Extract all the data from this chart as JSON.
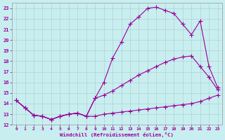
{
  "xlabel": "Windchill (Refroidissement éolien,°C)",
  "bg_color": "#c8eef0",
  "line_color": "#990099",
  "xlim": [
    -0.5,
    23.5
  ],
  "ylim": [
    12,
    23.5
  ],
  "xticks": [
    0,
    1,
    2,
    3,
    4,
    5,
    6,
    7,
    8,
    9,
    10,
    11,
    12,
    13,
    14,
    15,
    16,
    17,
    18,
    19,
    20,
    21,
    22,
    23
  ],
  "yticks": [
    12,
    13,
    14,
    15,
    16,
    17,
    18,
    19,
    20,
    21,
    22,
    23
  ],
  "line1_x": [
    0,
    1,
    2,
    3,
    4,
    5,
    6,
    7,
    8,
    9,
    10,
    11,
    12,
    13,
    14,
    15,
    16,
    17,
    18,
    19,
    20,
    21,
    22,
    23
  ],
  "line1_y": [
    14.3,
    13.6,
    12.9,
    12.8,
    12.5,
    12.8,
    13.0,
    13.1,
    12.8,
    12.8,
    13.0,
    13.1,
    13.2,
    13.3,
    13.4,
    13.5,
    13.6,
    13.7,
    13.8,
    13.9,
    14.0,
    14.2,
    14.5,
    14.8
  ],
  "line2_x": [
    0,
    1,
    2,
    3,
    4,
    5,
    6,
    7,
    8,
    9,
    10,
    11,
    12,
    13,
    14,
    15,
    16,
    17,
    18,
    19,
    20,
    21,
    22,
    23
  ],
  "line2_y": [
    14.3,
    13.6,
    12.9,
    12.8,
    12.5,
    12.8,
    13.0,
    13.1,
    12.8,
    14.5,
    14.8,
    15.2,
    15.7,
    16.2,
    16.7,
    17.1,
    17.5,
    17.9,
    18.2,
    18.4,
    18.5,
    17.5,
    16.5,
    15.3
  ],
  "line3_x": [
    0,
    1,
    2,
    3,
    4,
    5,
    6,
    7,
    8,
    9,
    10,
    11,
    12,
    13,
    14,
    15,
    16,
    17,
    18,
    19,
    20,
    21,
    22,
    23
  ],
  "line3_y": [
    14.3,
    13.6,
    12.9,
    12.8,
    12.5,
    12.8,
    13.0,
    13.1,
    12.8,
    14.5,
    16.0,
    18.3,
    19.8,
    21.5,
    22.2,
    23.0,
    23.1,
    22.8,
    22.5,
    21.5,
    20.5,
    21.8,
    17.5,
    15.5
  ],
  "marker": "+",
  "markersize": 4.0,
  "linewidth": 0.8
}
